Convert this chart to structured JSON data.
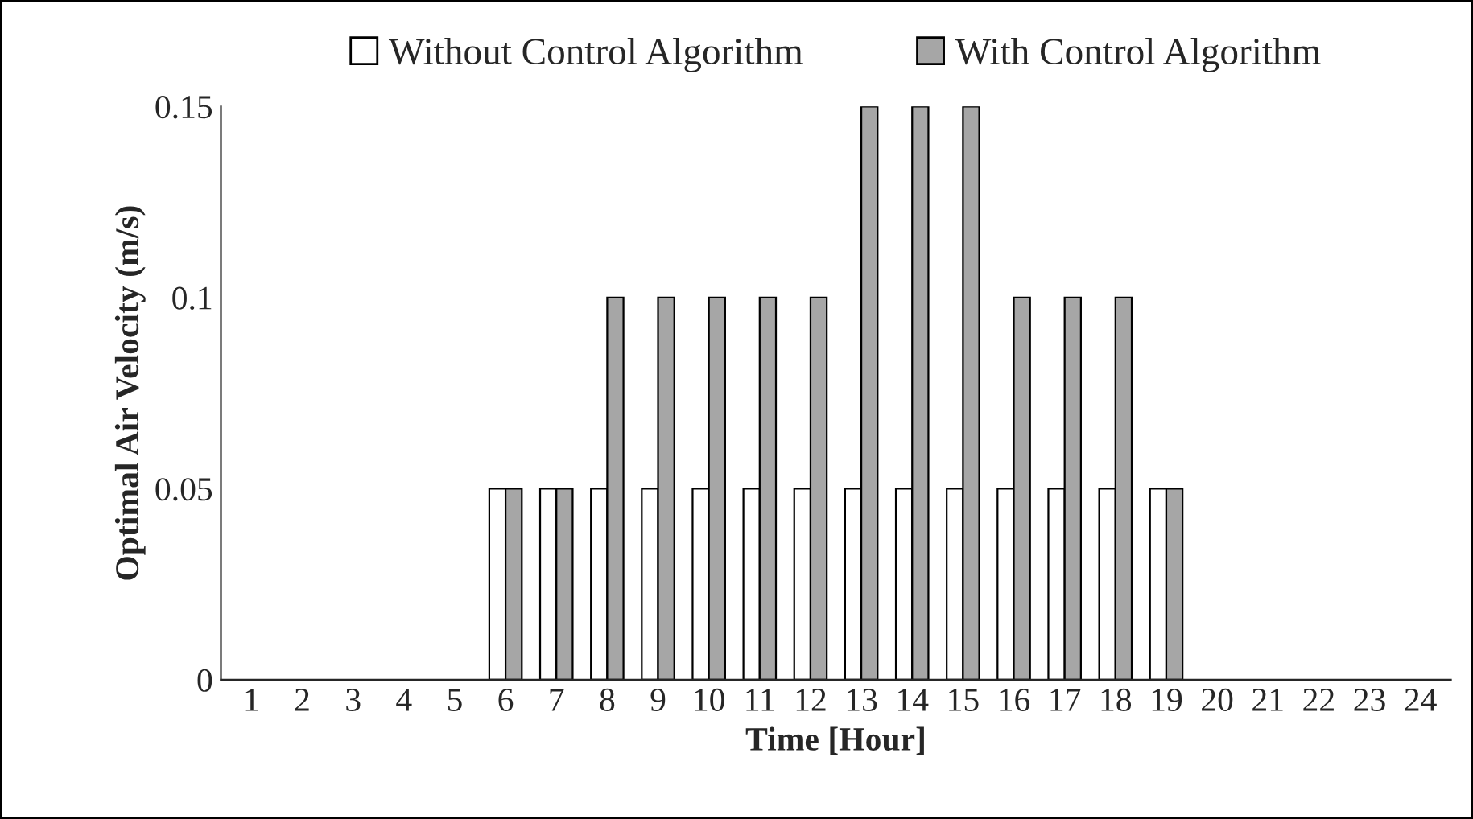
{
  "chart_data": {
    "type": "bar",
    "xlabel": "Time [Hour]",
    "ylabel": "Optimal Air Velocity (m/s)",
    "categories": [
      "1",
      "2",
      "3",
      "4",
      "5",
      "6",
      "7",
      "8",
      "9",
      "10",
      "11",
      "12",
      "13",
      "14",
      "15",
      "16",
      "17",
      "18",
      "19",
      "20",
      "21",
      "22",
      "23",
      "24"
    ],
    "series": [
      {
        "name": "Without Control Algorithm",
        "color": "#ffffff",
        "values": [
          0,
          0,
          0,
          0,
          0,
          0.05,
          0.05,
          0.05,
          0.05,
          0.05,
          0.05,
          0.05,
          0.05,
          0.05,
          0.05,
          0.05,
          0.05,
          0.05,
          0.05,
          0,
          0,
          0,
          0,
          0
        ]
      },
      {
        "name": "With Control Algorithm",
        "color": "#a6a6a6",
        "values": [
          0,
          0,
          0,
          0,
          0,
          0.05,
          0.05,
          0.1,
          0.1,
          0.1,
          0.1,
          0.1,
          0.15,
          0.15,
          0.15,
          0.1,
          0.1,
          0.1,
          0.05,
          0,
          0,
          0,
          0,
          0
        ]
      }
    ],
    "ylim": [
      0,
      0.15
    ],
    "yticks": [
      0,
      0.05,
      0.1,
      0.15
    ],
    "grid": false,
    "legend": "top"
  }
}
